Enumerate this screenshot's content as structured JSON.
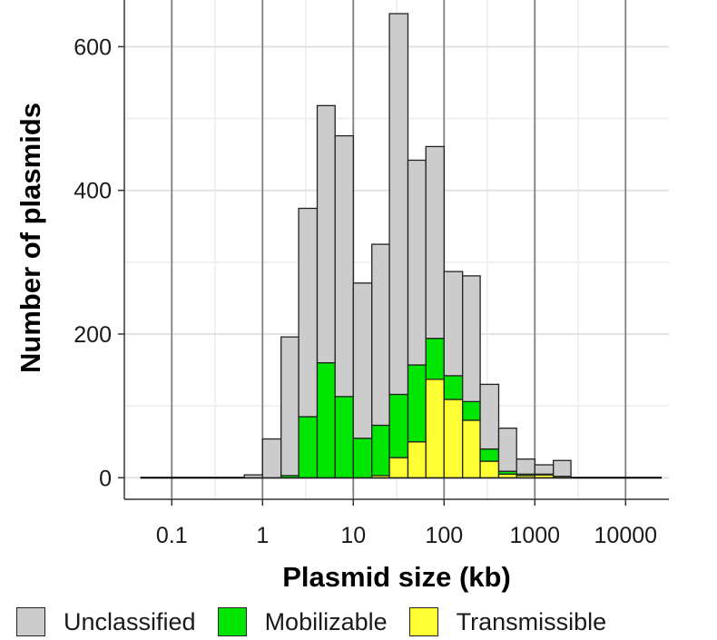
{
  "chart_data": {
    "type": "bar",
    "stacked": true,
    "x_scale": "log10",
    "xlabel": "Plasmid size (kb)",
    "ylabel": "Number of plasmids",
    "xlim": [
      0.03,
      30000
    ],
    "ylim": [
      -30,
      665
    ],
    "x_ticks": [
      0.1,
      1,
      10,
      100,
      1000,
      10000
    ],
    "x_tick_labels": [
      "0.1",
      "1",
      "10",
      "100",
      "1000",
      "10000"
    ],
    "y_ticks": [
      0,
      200,
      400,
      600
    ],
    "y_tick_labels": [
      "0",
      "200",
      "400",
      "600"
    ],
    "grid": true,
    "legend_position": "bottom",
    "bins": [
      {
        "from": 0.63,
        "to": 1.0,
        "unclassified": 4,
        "mobilizable": 0,
        "transmissible": 0
      },
      {
        "from": 1.0,
        "to": 1.6,
        "unclassified": 54,
        "mobilizable": 0,
        "transmissible": 0
      },
      {
        "from": 1.6,
        "to": 2.5,
        "unclassified": 193,
        "mobilizable": 3,
        "transmissible": 0
      },
      {
        "from": 2.5,
        "to": 4.0,
        "unclassified": 290,
        "mobilizable": 85,
        "transmissible": 0
      },
      {
        "from": 4.0,
        "to": 6.3,
        "unclassified": 358,
        "mobilizable": 160,
        "transmissible": 0
      },
      {
        "from": 6.3,
        "to": 10,
        "unclassified": 363,
        "mobilizable": 113,
        "transmissible": 0
      },
      {
        "from": 10,
        "to": 16,
        "unclassified": 216,
        "mobilizable": 55,
        "transmissible": 0
      },
      {
        "from": 16,
        "to": 25,
        "unclassified": 252,
        "mobilizable": 70,
        "transmissible": 3
      },
      {
        "from": 25,
        "to": 40,
        "unclassified": 530,
        "mobilizable": 88,
        "transmissible": 28
      },
      {
        "from": 40,
        "to": 63,
        "unclassified": 285,
        "mobilizable": 107,
        "transmissible": 50
      },
      {
        "from": 63,
        "to": 100,
        "unclassified": 267,
        "mobilizable": 57,
        "transmissible": 137
      },
      {
        "from": 100,
        "to": 160,
        "unclassified": 145,
        "mobilizable": 33,
        "transmissible": 109
      },
      {
        "from": 160,
        "to": 250,
        "unclassified": 175,
        "mobilizable": 26,
        "transmissible": 80
      },
      {
        "from": 250,
        "to": 400,
        "unclassified": 90,
        "mobilizable": 17,
        "transmissible": 23
      },
      {
        "from": 400,
        "to": 630,
        "unclassified": 60,
        "mobilizable": 4,
        "transmissible": 5
      },
      {
        "from": 630,
        "to": 1000,
        "unclassified": 21,
        "mobilizable": 2,
        "transmissible": 3
      },
      {
        "from": 1000,
        "to": 1600,
        "unclassified": 13,
        "mobilizable": 1,
        "transmissible": 4
      },
      {
        "from": 1600,
        "to": 2500,
        "unclassified": 22,
        "mobilizable": 0,
        "transmissible": 2
      }
    ],
    "baseline_range": [
      0.045,
      25000
    ],
    "series": [
      {
        "key": "unclassified",
        "name": "Unclassified",
        "color": "#cccccc"
      },
      {
        "key": "mobilizable",
        "name": "Mobilizable",
        "color": "#00e600"
      },
      {
        "key": "transmissible",
        "name": "Transmissible",
        "color": "#ffff33"
      }
    ]
  }
}
